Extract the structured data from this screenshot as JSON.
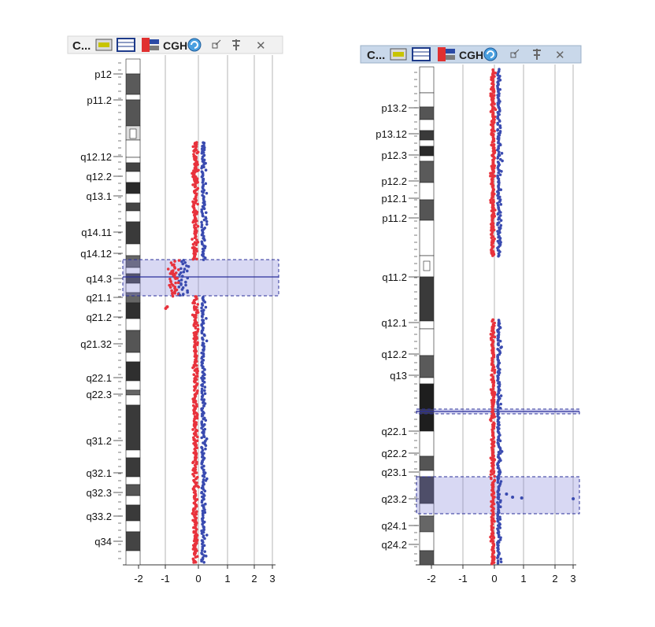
{
  "colors": {
    "toolbar_bg_left": "#f1f1f1",
    "toolbar_bg_right": "#c9d8ea",
    "dot_red": "#e8323c",
    "dot_blue": "#3a4bb0",
    "highlight_fill": "#7d7fd6",
    "highlight_border": "#2a2f9a",
    "grid": "#b5b5b5"
  },
  "toolbars": [
    {
      "title": "C...",
      "items": [
        {
          "name": "karyotype-view-icon",
          "label": ""
        },
        {
          "name": "table-view-icon",
          "label": ""
        },
        {
          "name": "chromosome-view-icon",
          "label": ""
        },
        {
          "name": "cgh-icon",
          "label": "CGH"
        },
        {
          "name": "refresh-icon",
          "label": ""
        },
        {
          "name": "expand-icon",
          "label": ""
        },
        {
          "name": "pin-icon",
          "label": ""
        },
        {
          "name": "close-icon",
          "label": "✕"
        }
      ]
    },
    {
      "title": "C...",
      "items": [
        {
          "name": "karyotype-view-icon",
          "label": ""
        },
        {
          "name": "table-view-icon",
          "label": ""
        },
        {
          "name": "chromosome-view-icon",
          "label": ""
        },
        {
          "name": "cgh-icon",
          "label": "CGH"
        },
        {
          "name": "refresh-icon",
          "label": ""
        },
        {
          "name": "expand-icon",
          "label": ""
        },
        {
          "name": "pin-icon",
          "label": ""
        },
        {
          "name": "close-icon",
          "label": "✕"
        }
      ]
    }
  ],
  "chart_data": [
    {
      "type": "scatter",
      "title": "",
      "xlabel": "",
      "ylabel": "",
      "x_ticks": [
        "-2",
        "-1",
        "0",
        "1",
        "2",
        "3"
      ],
      "xlim": [
        -2.7,
        3
      ],
      "grid": "vertical",
      "band_labels": [
        "p12",
        "p11.2",
        "q12.12",
        "q12.2",
        "q13.1",
        "q14.11",
        "q14.12",
        "q14.3",
        "q21.1",
        "q21.2",
        "q21.32",
        "q22.1",
        "q22.3",
        "q31.2",
        "q32.1",
        "q32.3",
        "q33.2",
        "q34"
      ],
      "series": [
        {
          "name": "",
          "color": "red",
          "description_values": {
            "baseline_log_ratio": -0.1,
            "spread": 0.15
          }
        },
        {
          "name": "",
          "color": "blue",
          "description_values": {
            "baseline_log_ratio": 0.1,
            "spread": 0.15
          }
        }
      ],
      "aberrations": [
        {
          "region_start": "q14.12",
          "region_end": "q21.1",
          "mean_log_ratio": -0.8,
          "type": "deletion"
        }
      ]
    },
    {
      "type": "scatter",
      "title": "",
      "xlabel": "",
      "ylabel": "",
      "x_ticks": [
        "-2",
        "-1",
        "0",
        "1",
        "2",
        "3"
      ],
      "xlim": [
        -2.7,
        3
      ],
      "grid": "vertical",
      "band_labels": [
        "p13.2",
        "p13.12",
        "p12.3",
        "p12.2",
        "p12.1",
        "p11.2",
        "q11.2",
        "q12.1",
        "q12.2",
        "q13",
        "q22.1",
        "q22.2",
        "q23.1",
        "q23.2",
        "q24.1",
        "q24.2"
      ],
      "series": [
        {
          "name": "",
          "color": "red",
          "description_values": {
            "baseline_log_ratio": -0.05,
            "spread": 0.12
          }
        },
        {
          "name": "",
          "color": "blue",
          "description_values": {
            "baseline_log_ratio": 0.1,
            "spread": 0.12
          }
        }
      ],
      "aberrations": [
        {
          "region_start": "q13",
          "region_end": "q22.1",
          "mean_log_ratio": 0,
          "type": "narrow-call"
        },
        {
          "region_start": "q23.1",
          "region_end": "q24.1",
          "mean_log_ratio": 0.3,
          "type": "gain"
        }
      ]
    }
  ]
}
